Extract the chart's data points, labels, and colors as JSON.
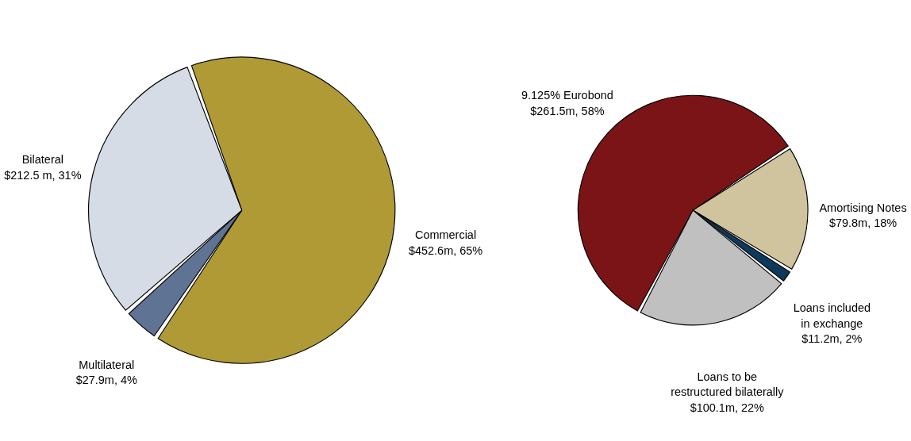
{
  "chart_data": [
    {
      "type": "pie",
      "categories": [
        "Commercial",
        "Multilateral",
        "Bilateral"
      ],
      "values": [
        65,
        4,
        31
      ],
      "value_labels": [
        "$452.6m, 65%",
        "$27.9m, 4%",
        "$212.5 m, 31%"
      ],
      "colors": [
        "#b09a35",
        "#5f7394",
        "#d6dce5"
      ],
      "legend": false
    },
    {
      "type": "pie",
      "categories": [
        "9.125% Eurobond",
        "Amortising Notes",
        "Loans included\nin exchange",
        "Loans to be\nrestructured bilaterally"
      ],
      "values": [
        58,
        18,
        2,
        22
      ],
      "value_labels": [
        "$261.5m, 58%",
        "$79.8m, 18%",
        "$11.2m, 2%",
        "$100.1m, 22%"
      ],
      "colors": [
        "#7b1416",
        "#cfc49d",
        "#0d3a5a",
        "#c0c0c0"
      ],
      "legend": false
    }
  ]
}
